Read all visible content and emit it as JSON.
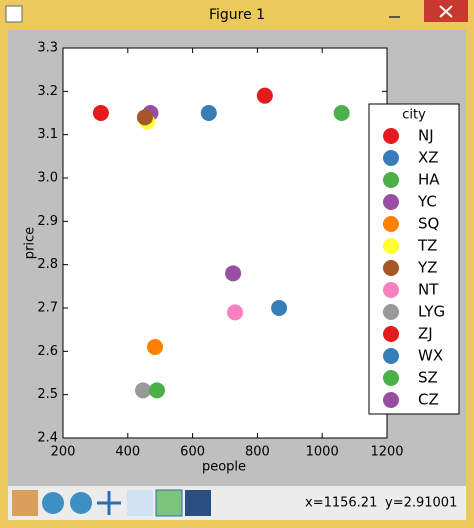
{
  "window": {
    "title": "Figure 1",
    "status_x": "x=1156.21",
    "status_y": "y=2.91001"
  },
  "chart_data": {
    "type": "scatter",
    "xlabel": "people",
    "ylabel": "price",
    "legend_title": "city",
    "legend": "right",
    "xlim": [
      200,
      1200
    ],
    "xticks": [
      200,
      400,
      600,
      800,
      1000,
      1200
    ],
    "ylim": [
      2.4,
      3.3
    ],
    "yticks": [
      2.4,
      2.5,
      2.6,
      2.7,
      2.8,
      2.9,
      {
        "value": 3,
        "label": "3.0"
      },
      3.1,
      3.2,
      3.3
    ],
    "series": [
      {
        "name": "NJ",
        "color": "#e41a1c",
        "x": [
          317
        ],
        "values": [
          3.15
        ]
      },
      {
        "name": "XZ",
        "color": "#377eb8",
        "x": [
          650
        ],
        "values": [
          3.15
        ]
      },
      {
        "name": "HA",
        "color": "#4daf4a",
        "x": [
          1060
        ],
        "values": [
          3.15
        ]
      },
      {
        "name": "YC",
        "color": "#984ea3",
        "x": [
          470
        ],
        "values": [
          3.15
        ]
      },
      {
        "name": "SQ",
        "color": "#ff7f00",
        "x": [
          484
        ],
        "values": [
          2.61
        ]
      },
      {
        "name": "TZ",
        "color": "#ffff33",
        "x": [
          460
        ],
        "values": [
          3.13
        ]
      },
      {
        "name": "YZ",
        "color": "#a65628",
        "x": [
          453
        ],
        "values": [
          3.14
        ]
      },
      {
        "name": "NT",
        "color": "#f781bf",
        "x": [
          731
        ],
        "values": [
          2.69
        ]
      },
      {
        "name": "LYG",
        "color": "#999999",
        "x": [
          447
        ],
        "values": [
          2.51
        ]
      },
      {
        "name": "ZJ",
        "color": "#e41a1c",
        "x": [
          823
        ],
        "values": [
          3.19
        ]
      },
      {
        "name": "WX",
        "color": "#377eb8",
        "x": [
          867
        ],
        "values": [
          2.7
        ]
      },
      {
        "name": "SZ",
        "color": "#4daf4a",
        "x": [
          490
        ],
        "values": [
          2.51
        ]
      },
      {
        "name": "CZ",
        "color": "#984ea3",
        "x": [
          725
        ],
        "values": [
          2.78
        ]
      }
    ]
  }
}
